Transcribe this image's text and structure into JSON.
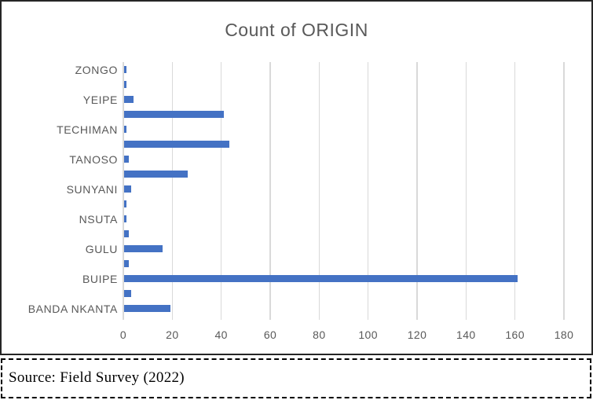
{
  "figure": {
    "source_note": "Source: Field Survey (2022)"
  },
  "chart_data": {
    "type": "bar",
    "orientation": "horizontal",
    "title": "Count of ORIGIN",
    "categories": [
      "ZONGO",
      "",
      "YEIPE",
      "",
      "TECHIMAN",
      "",
      "TANOSO",
      "",
      "SUNYANI",
      "",
      "NSUTA",
      "",
      "GULU",
      "",
      "BUIPE",
      "",
      "BANDA NKANTA"
    ],
    "values": [
      1,
      1,
      4,
      41,
      1,
      43,
      2,
      26,
      3,
      1,
      1,
      2,
      16,
      2,
      161,
      3,
      19
    ],
    "xlim": [
      0,
      180
    ],
    "x_ticks": [
      0,
      20,
      40,
      60,
      80,
      100,
      120,
      140,
      160,
      180
    ],
    "grid": true,
    "legend": false,
    "colors": {
      "bar": "#4472C4",
      "gridline": "#D9D9D9",
      "text": "#595959",
      "panel_border": "#262626"
    }
  }
}
